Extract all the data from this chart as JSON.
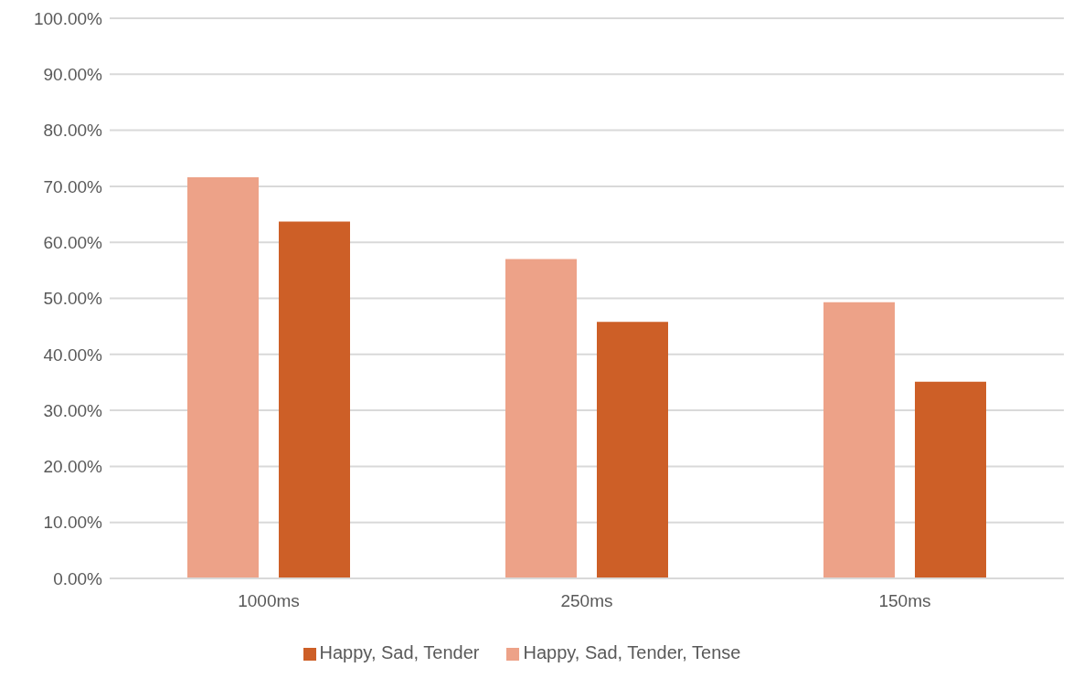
{
  "chart_data": {
    "type": "bar",
    "categories": [
      "1000ms",
      "250ms",
      "150ms"
    ],
    "series": [
      {
        "name": "Happy, Sad, Tender, Tense",
        "color": "#eda288",
        "values": [
          71.6,
          57.0,
          49.3
        ]
      },
      {
        "name": "Happy, Sad, Tender",
        "color": "#cd5f27",
        "values": [
          63.7,
          45.8,
          35.1
        ]
      }
    ],
    "ylim": [
      0,
      100
    ],
    "yticks": [
      {
        "value": 0,
        "label": "0.00%"
      },
      {
        "value": 10,
        "label": "10.00%"
      },
      {
        "value": 20,
        "label": "20.00%"
      },
      {
        "value": 30,
        "label": "30.00%"
      },
      {
        "value": 40,
        "label": "40.00%"
      },
      {
        "value": 50,
        "label": "50.00%"
      },
      {
        "value": 60,
        "label": "60.00%"
      },
      {
        "value": 70,
        "label": "70.00%"
      },
      {
        "value": 80,
        "label": "80.00%"
      },
      {
        "value": 90,
        "label": "90.00%"
      },
      {
        "value": 100,
        "label": "100.00%"
      }
    ],
    "grid": "y",
    "legend": "bottom"
  }
}
